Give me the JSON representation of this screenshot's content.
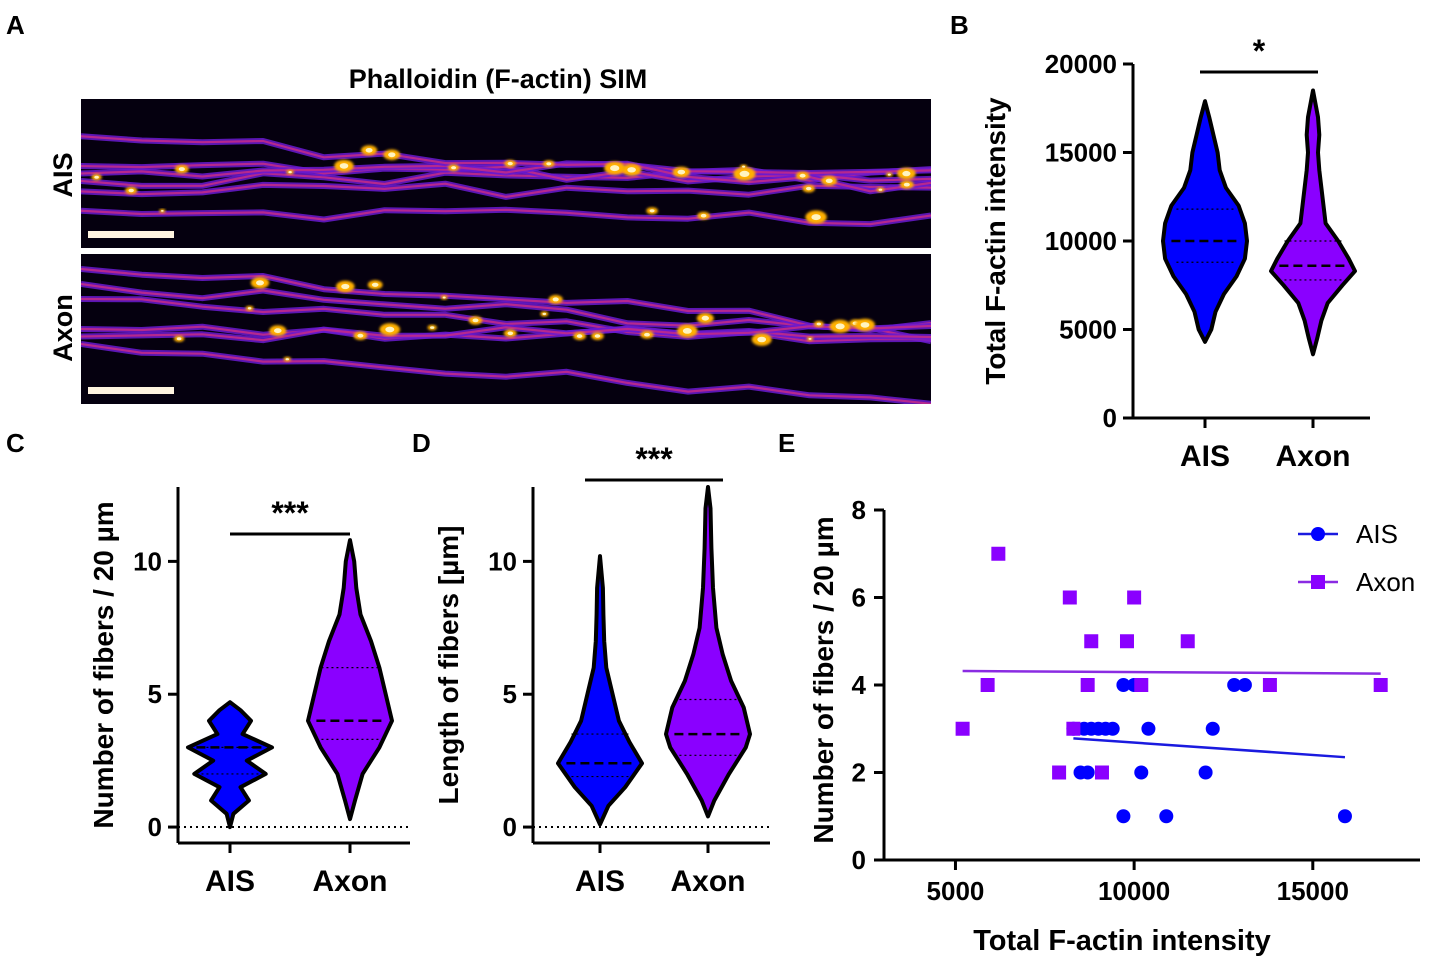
{
  "panels": {
    "A": {
      "letter": "A",
      "title": "Phalloidin (F-actin) SIM",
      "row_labels": [
        "AIS",
        "Axon"
      ]
    },
    "B": {
      "letter": "B"
    },
    "C": {
      "letter": "C"
    },
    "D": {
      "letter": "D"
    },
    "E": {
      "letter": "E"
    }
  },
  "colors": {
    "ais": "#0000ff",
    "axon": "#8a00ff",
    "line_ais": "#1a1adf",
    "line_axon": "#8a2be2",
    "image_bg": "#05000f",
    "fiber_dim": "#6b1ad0",
    "fiber_mid": "#c02a8a",
    "fiber_hot": "#ffb000",
    "fiber_white": "#fff4c0"
  },
  "chart_data": [
    {
      "panel": "B",
      "type": "violin",
      "title": "",
      "xlabel": "",
      "ylabel": "Total F-actin intensity",
      "ylim": [
        0,
        20000
      ],
      "yticks": [
        0,
        5000,
        10000,
        15000,
        20000
      ],
      "categories": [
        "AIS",
        "Axon"
      ],
      "significance": "*",
      "series": [
        {
          "name": "AIS",
          "min": 4300,
          "max": 17900,
          "median": 10000,
          "q1": 8800,
          "q3": 11800,
          "profile": [
            [
              4300,
              0
            ],
            [
              5000,
              0.15
            ],
            [
              6000,
              0.25
            ],
            [
              7000,
              0.45
            ],
            [
              8000,
              0.75
            ],
            [
              9000,
              0.95
            ],
            [
              10000,
              1.0
            ],
            [
              11000,
              0.95
            ],
            [
              12000,
              0.8
            ],
            [
              13000,
              0.5
            ],
            [
              14000,
              0.35
            ],
            [
              15000,
              0.3
            ],
            [
              16000,
              0.2
            ],
            [
              17000,
              0.1
            ],
            [
              17900,
              0
            ]
          ]
        },
        {
          "name": "Axon",
          "min": 3600,
          "max": 18500,
          "median": 8600,
          "q1": 7800,
          "q3": 10000,
          "profile": [
            [
              3600,
              0
            ],
            [
              4500,
              0.1
            ],
            [
              5500,
              0.2
            ],
            [
              6500,
              0.35
            ],
            [
              7500,
              0.7
            ],
            [
              8300,
              1.0
            ],
            [
              9000,
              0.85
            ],
            [
              10000,
              0.6
            ],
            [
              11000,
              0.3
            ],
            [
              12000,
              0.25
            ],
            [
              13000,
              0.2
            ],
            [
              14000,
              0.15
            ],
            [
              15000,
              0.12
            ],
            [
              16000,
              0.15
            ],
            [
              17000,
              0.12
            ],
            [
              18500,
              0
            ]
          ]
        }
      ]
    },
    {
      "panel": "C",
      "type": "violin",
      "title": "",
      "xlabel": "",
      "ylabel": "Number of fibers / 20 µm",
      "ylim": [
        -0.6,
        12.8
      ],
      "yticks": [
        0,
        5,
        10
      ],
      "reference_line": 0,
      "categories": [
        "AIS",
        "Axon"
      ],
      "significance": "***",
      "series": [
        {
          "name": "AIS",
          "min": 0,
          "max": 4.7,
          "median": 3.0,
          "q1": 2.0,
          "q3": 3.0,
          "profile": [
            [
              0,
              0
            ],
            [
              0.5,
              0.08
            ],
            [
              1,
              0.45
            ],
            [
              1.5,
              0.25
            ],
            [
              2,
              0.85
            ],
            [
              2.5,
              0.4
            ],
            [
              3,
              1.0
            ],
            [
              3.5,
              0.3
            ],
            [
              4,
              0.5
            ],
            [
              4.4,
              0.25
            ],
            [
              4.7,
              0
            ]
          ]
        },
        {
          "name": "Axon",
          "min": 0.3,
          "max": 10.8,
          "median": 4.0,
          "q1": 3.3,
          "q3": 6.0,
          "profile": [
            [
              0.3,
              0
            ],
            [
              1,
              0.12
            ],
            [
              2,
              0.3
            ],
            [
              3,
              0.7
            ],
            [
              4,
              1.0
            ],
            [
              5,
              0.85
            ],
            [
              6,
              0.7
            ],
            [
              7,
              0.5
            ],
            [
              8,
              0.25
            ],
            [
              9,
              0.15
            ],
            [
              10,
              0.1
            ],
            [
              10.8,
              0
            ]
          ]
        }
      ]
    },
    {
      "panel": "D",
      "type": "violin",
      "title": "",
      "xlabel": "",
      "ylabel": "Length of fibers [µm]",
      "ylim": [
        -0.6,
        12.8
      ],
      "yticks": [
        0,
        5,
        10
      ],
      "reference_line": 0,
      "categories": [
        "AIS",
        "Axon"
      ],
      "significance": "***",
      "series": [
        {
          "name": "AIS",
          "min": 0.1,
          "max": 10.2,
          "median": 2.4,
          "q1": 1.9,
          "q3": 3.5,
          "profile": [
            [
              0.1,
              0
            ],
            [
              0.8,
              0.2
            ],
            [
              1.5,
              0.6
            ],
            [
              2.4,
              1.0
            ],
            [
              3.2,
              0.7
            ],
            [
              4,
              0.45
            ],
            [
              5,
              0.3
            ],
            [
              6,
              0.15
            ],
            [
              7,
              0.1
            ],
            [
              8,
              0.08
            ],
            [
              9,
              0.07
            ],
            [
              10.2,
              0
            ]
          ]
        },
        {
          "name": "Axon",
          "min": 0.4,
          "max": 12.8,
          "median": 3.5,
          "q1": 2.7,
          "q3": 4.8,
          "profile": [
            [
              0.4,
              0
            ],
            [
              1,
              0.15
            ],
            [
              2,
              0.5
            ],
            [
              3,
              0.9
            ],
            [
              3.5,
              1.0
            ],
            [
              4.5,
              0.85
            ],
            [
              5.5,
              0.55
            ],
            [
              6.5,
              0.35
            ],
            [
              7.5,
              0.2
            ],
            [
              9,
              0.12
            ],
            [
              10.5,
              0.08
            ],
            [
              12,
              0.06
            ],
            [
              12.8,
              0
            ]
          ]
        }
      ]
    },
    {
      "panel": "E",
      "type": "scatter",
      "title": "",
      "xlabel": "Total F-actin intensity",
      "ylabel": "Number of fibers / 20 µm",
      "xlim": [
        3000,
        18000
      ],
      "ylim": [
        0,
        8
      ],
      "xticks": [
        5000,
        10000,
        15000
      ],
      "yticks": [
        0,
        2,
        4,
        6,
        8
      ],
      "legend_position": "top-right",
      "series": [
        {
          "name": "AIS",
          "marker": "circle",
          "points": [
            [
              8300,
              3
            ],
            [
              8500,
              2
            ],
            [
              8600,
              3
            ],
            [
              8700,
              2
            ],
            [
              8800,
              3
            ],
            [
              9000,
              3
            ],
            [
              9200,
              3
            ],
            [
              9400,
              3
            ],
            [
              9700,
              4
            ],
            [
              9700,
              1
            ],
            [
              10000,
              4
            ],
            [
              10200,
              2
            ],
            [
              10400,
              3
            ],
            [
              10900,
              1
            ],
            [
              12000,
              2
            ],
            [
              12200,
              3
            ],
            [
              12800,
              4
            ],
            [
              13100,
              4
            ],
            [
              15900,
              1
            ]
          ],
          "fit": [
            [
              8300,
              2.78
            ],
            [
              15900,
              2.35
            ]
          ]
        },
        {
          "name": "Axon",
          "marker": "square",
          "points": [
            [
              5200,
              3
            ],
            [
              5900,
              4
            ],
            [
              6200,
              7
            ],
            [
              7900,
              2
            ],
            [
              8200,
              6
            ],
            [
              8300,
              3
            ],
            [
              8700,
              4
            ],
            [
              8800,
              5
            ],
            [
              9100,
              2
            ],
            [
              9800,
              5
            ],
            [
              10000,
              6
            ],
            [
              10200,
              4
            ],
            [
              11500,
              5
            ],
            [
              13800,
              4
            ],
            [
              16900,
              4
            ]
          ],
          "fit": [
            [
              5200,
              4.32
            ],
            [
              16900,
              4.26
            ]
          ]
        }
      ]
    }
  ]
}
